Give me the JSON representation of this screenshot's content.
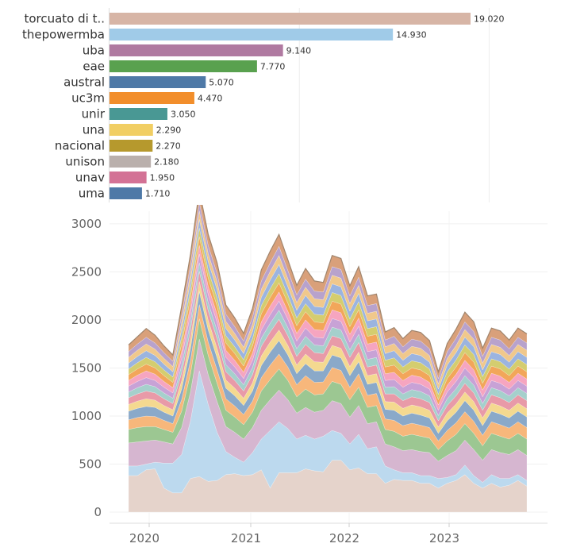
{
  "chart_data": [
    {
      "type": "bar",
      "orientation": "horizontal",
      "title": "",
      "categories": [
        "torcuato di t..",
        "thepowermba",
        "uba",
        "eae",
        "austral",
        "uc3m",
        "unir",
        "una",
        "nacional",
        "unison",
        "unav",
        "uma"
      ],
      "values": [
        19020,
        14930,
        9140,
        7770,
        5070,
        4470,
        3050,
        2290,
        2270,
        2180,
        1950,
        1710
      ],
      "value_labels": [
        "19.020",
        "14.930",
        "9.140",
        "7.770",
        "5.070",
        "4.470",
        "3.050",
        "2.290",
        "2.270",
        "2.180",
        "1.950",
        "1.710"
      ],
      "colors": [
        "#d7b5a6",
        "#a0cbe8",
        "#b07aa1",
        "#59a14f",
        "#4e79a7",
        "#f28e2b",
        "#499894",
        "#f1ce63",
        "#b6992d",
        "#bab0ac",
        "#d37295",
        "#4e79a7"
      ],
      "xlim": [
        0,
        25000
      ],
      "grid": true
    },
    {
      "type": "area",
      "stacked": true,
      "title": "",
      "xlabel": "",
      "ylabel": "",
      "x_ticks": [
        "2020",
        "2021",
        "2022",
        "2023"
      ],
      "y_ticks": [
        "0",
        "500",
        "1000",
        "1500",
        "2000",
        "2500",
        "3000"
      ],
      "ylim": [
        0,
        3200
      ],
      "x_range": [
        "2019-10",
        "2023-10"
      ],
      "grid": true,
      "series_layers": [
        {
          "color": "#e5d3cb",
          "values": [
            380,
            380,
            440,
            450,
            250,
            200,
            200,
            350,
            370,
            320,
            330,
            390,
            400,
            380,
            390,
            440,
            250,
            410,
            410,
            410,
            450,
            430,
            420,
            540,
            540,
            440,
            460,
            400,
            400,
            300,
            340,
            330,
            330,
            300,
            300,
            250,
            300,
            330,
            390,
            300,
            250,
            300,
            260,
            280,
            330,
            270
          ]
        },
        {
          "color": "#bcd9ee",
          "values": [
            100,
            100,
            60,
            70,
            260,
            310,
            400,
            600,
            1100,
            800,
            500,
            240,
            170,
            140,
            230,
            320,
            600,
            530,
            460,
            350,
            350,
            330,
            370,
            310,
            280,
            270,
            350,
            260,
            280,
            180,
            100,
            80,
            80,
            80,
            80,
            100,
            60,
            60,
            100,
            80,
            60,
            90,
            90,
            70,
            60,
            60
          ]
        },
        {
          "color": "#d6b6d0",
          "values": [
            240,
            250,
            240,
            230,
            220,
            200,
            280,
            300,
            330,
            310,
            320,
            260,
            260,
            240,
            260,
            300,
            320,
            330,
            300,
            270,
            290,
            280,
            270,
            310,
            310,
            280,
            300,
            260,
            260,
            230,
            240,
            230,
            240,
            250,
            240,
            180,
            230,
            250,
            260,
            270,
            230,
            260,
            270,
            250,
            260,
            260
          ]
        },
        {
          "color": "#9cc792",
          "values": [
            140,
            150,
            150,
            140,
            130,
            120,
            170,
            190,
            210,
            200,
            190,
            170,
            160,
            150,
            160,
            200,
            210,
            220,
            200,
            170,
            190,
            180,
            170,
            200,
            200,
            180,
            190,
            170,
            170,
            150,
            160,
            150,
            160,
            160,
            150,
            120,
            150,
            170,
            170,
            170,
            150,
            170,
            170,
            160,
            170,
            170
          ]
        },
        {
          "color": "#f7b77b",
          "values": [
            100,
            105,
            110,
            105,
            95,
            90,
            120,
            140,
            150,
            140,
            140,
            120,
            115,
            105,
            115,
            140,
            150,
            155,
            140,
            125,
            140,
            130,
            125,
            145,
            145,
            130,
            140,
            125,
            125,
            110,
            115,
            110,
            115,
            115,
            110,
            90,
            110,
            120,
            125,
            125,
            110,
            120,
            120,
            115,
            120,
            120
          ]
        },
        {
          "color": "#8aa9c9",
          "values": [
            90,
            95,
            100,
            95,
            85,
            80,
            110,
            125,
            135,
            125,
            125,
            110,
            105,
            95,
            105,
            125,
            135,
            140,
            125,
            115,
            125,
            120,
            115,
            130,
            130,
            120,
            125,
            115,
            115,
            100,
            105,
            100,
            105,
            105,
            100,
            80,
            100,
            110,
            115,
            115,
            100,
            110,
            110,
            105,
            110,
            110
          ]
        },
        {
          "color": "#f4d990",
          "values": [
            70,
            75,
            80,
            75,
            70,
            65,
            85,
            95,
            105,
            100,
            100,
            85,
            80,
            75,
            85,
            100,
            105,
            110,
            100,
            90,
            100,
            95,
            90,
            100,
            100,
            95,
            100,
            90,
            90,
            80,
            85,
            80,
            85,
            85,
            80,
            65,
            80,
            85,
            90,
            90,
            80,
            85,
            85,
            80,
            85,
            85
          ]
        },
        {
          "color": "#e89aa8",
          "values": [
            70,
            75,
            80,
            75,
            70,
            65,
            85,
            95,
            105,
            100,
            100,
            85,
            80,
            75,
            85,
            100,
            105,
            110,
            100,
            90,
            100,
            95,
            90,
            100,
            100,
            95,
            100,
            90,
            90,
            80,
            85,
            80,
            85,
            85,
            80,
            65,
            80,
            85,
            90,
            90,
            80,
            85,
            85,
            80,
            85,
            85
          ]
        },
        {
          "color": "#a5d0cc",
          "values": [
            60,
            65,
            70,
            65,
            60,
            55,
            75,
            85,
            90,
            85,
            85,
            75,
            70,
            65,
            75,
            85,
            90,
            95,
            85,
            80,
            85,
            80,
            80,
            90,
            90,
            80,
            85,
            80,
            80,
            70,
            75,
            70,
            75,
            75,
            70,
            55,
            70,
            75,
            80,
            80,
            70,
            75,
            75,
            70,
            75,
            75
          ]
        },
        {
          "color": "#c8a2d6",
          "values": [
            60,
            65,
            70,
            65,
            60,
            55,
            75,
            85,
            90,
            85,
            85,
            75,
            70,
            65,
            75,
            85,
            90,
            95,
            85,
            80,
            85,
            80,
            80,
            90,
            90,
            80,
            85,
            80,
            80,
            70,
            75,
            70,
            75,
            75,
            70,
            55,
            70,
            75,
            80,
            80,
            70,
            75,
            75,
            70,
            75,
            75
          ]
        },
        {
          "color": "#f6a5c0",
          "values": [
            60,
            65,
            70,
            65,
            60,
            55,
            75,
            85,
            90,
            85,
            85,
            75,
            70,
            65,
            75,
            85,
            90,
            95,
            85,
            80,
            85,
            80,
            80,
            90,
            90,
            80,
            85,
            80,
            80,
            70,
            75,
            70,
            75,
            75,
            70,
            55,
            70,
            75,
            80,
            80,
            70,
            75,
            75,
            70,
            75,
            75
          ]
        },
        {
          "color": "#f2a65a",
          "values": [
            60,
            65,
            70,
            65,
            60,
            55,
            75,
            85,
            90,
            85,
            85,
            75,
            70,
            65,
            75,
            85,
            90,
            95,
            85,
            80,
            85,
            80,
            80,
            90,
            90,
            80,
            85,
            80,
            80,
            70,
            75,
            70,
            75,
            75,
            70,
            55,
            70,
            75,
            80,
            80,
            70,
            75,
            75,
            70,
            75,
            75
          ]
        },
        {
          "color": "#d4cd6f",
          "values": [
            60,
            65,
            70,
            65,
            60,
            55,
            75,
            85,
            90,
            85,
            85,
            75,
            70,
            65,
            75,
            85,
            90,
            95,
            85,
            80,
            85,
            80,
            80,
            90,
            90,
            80,
            85,
            80,
            80,
            70,
            75,
            70,
            75,
            75,
            70,
            55,
            70,
            75,
            80,
            80,
            70,
            75,
            75,
            70,
            75,
            75
          ]
        },
        {
          "color": "#9bb4e0",
          "values": [
            60,
            65,
            70,
            65,
            60,
            55,
            75,
            85,
            90,
            85,
            85,
            75,
            70,
            65,
            75,
            85,
            90,
            95,
            85,
            80,
            85,
            80,
            80,
            90,
            90,
            80,
            85,
            80,
            80,
            70,
            75,
            70,
            75,
            75,
            70,
            55,
            70,
            75,
            80,
            80,
            70,
            75,
            75,
            70,
            75,
            75
          ]
        },
        {
          "color": "#f0c88c",
          "values": [
            60,
            65,
            70,
            65,
            60,
            55,
            75,
            85,
            90,
            85,
            85,
            75,
            70,
            65,
            75,
            85,
            90,
            95,
            85,
            80,
            85,
            80,
            80,
            90,
            90,
            80,
            85,
            80,
            80,
            70,
            75,
            70,
            75,
            75,
            70,
            55,
            70,
            75,
            80,
            80,
            70,
            75,
            75,
            70,
            75,
            75
          ]
        },
        {
          "color": "#b8a2cc",
          "values": [
            60,
            65,
            70,
            65,
            60,
            55,
            75,
            85,
            90,
            85,
            85,
            75,
            70,
            65,
            75,
            85,
            90,
            95,
            85,
            80,
            85,
            80,
            80,
            90,
            90,
            80,
            85,
            80,
            80,
            70,
            75,
            70,
            75,
            75,
            70,
            55,
            70,
            75,
            80,
            80,
            70,
            75,
            75,
            70,
            75,
            75
          ]
        },
        {
          "color": "#d9a07a",
          "values": [
            70,
            75,
            90,
            80,
            70,
            65,
            90,
            110,
            120,
            115,
            110,
            95,
            90,
            80,
            90,
            115,
            120,
            125,
            110,
            100,
            110,
            105,
            100,
            115,
            115,
            105,
            110,
            100,
            100,
            85,
            90,
            85,
            90,
            90,
            85,
            70,
            85,
            95,
            100,
            100,
            85,
            95,
            95,
            90,
            95,
            95
          ]
        }
      ]
    }
  ]
}
